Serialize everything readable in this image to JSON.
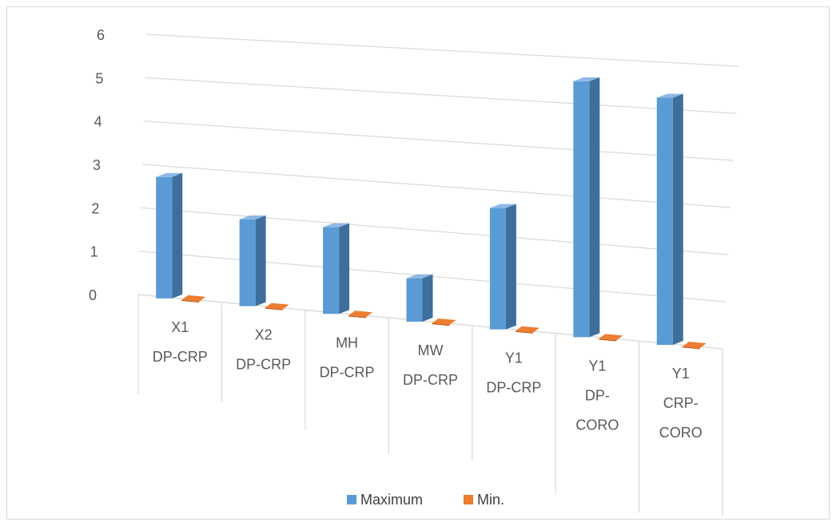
{
  "chart_data": {
    "type": "bar",
    "categories": [
      [
        "X1",
        "DP-CRP"
      ],
      [
        "X2",
        "DP-CRP"
      ],
      [
        "MH",
        "DP-CRP"
      ],
      [
        "MW",
        "DP-CRP"
      ],
      [
        "Y1",
        "DP-CRP"
      ],
      [
        "Y1",
        "DP-",
        "CORO"
      ],
      [
        "Y1",
        "CRP-",
        "CORO"
      ]
    ],
    "series": [
      {
        "name": "Maximum",
        "values": [
          2.8,
          2.0,
          2.0,
          1.0,
          2.8,
          5.9,
          5.7
        ]
      },
      {
        "name": "Min.",
        "values": [
          0.05,
          0.05,
          0.05,
          0.05,
          0.05,
          0.05,
          0.05
        ]
      }
    ],
    "yticks": [
      "0",
      "1",
      "2",
      "3",
      "4",
      "5",
      "6"
    ],
    "ylim": [
      0,
      6
    ],
    "grid": true,
    "legend_position": "bottom",
    "colors": {
      "Maximum": "#5b9bd5",
      "Maximum_side": "#3e6f9c",
      "Maximum_top": "#8db8e6",
      "Min.": "#ed7d31",
      "Min._top": "#c55a11",
      "grid": "#d9d9d9"
    }
  }
}
